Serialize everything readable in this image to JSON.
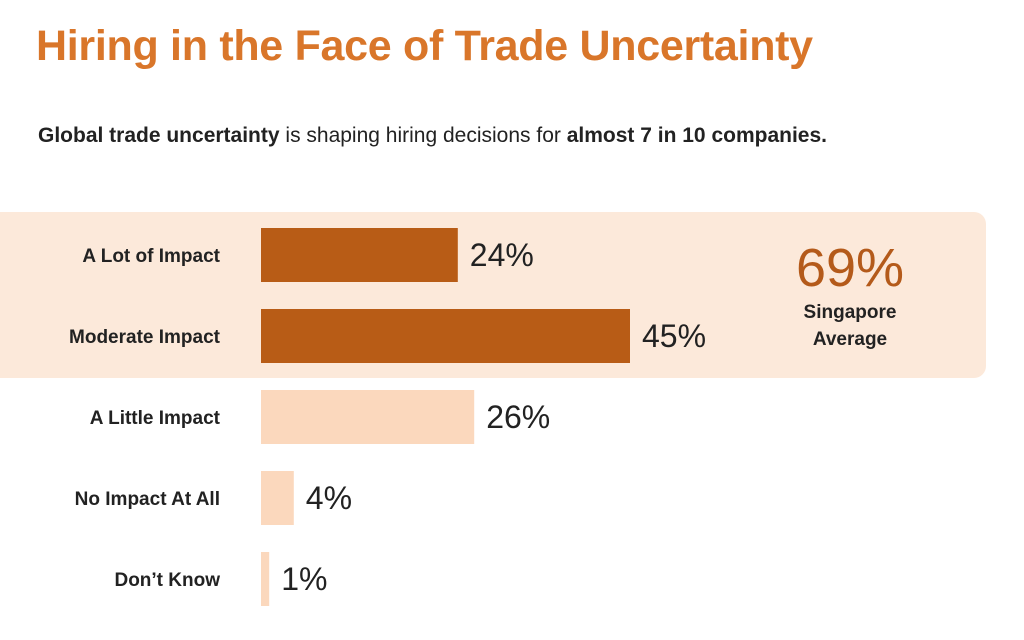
{
  "header": {
    "title": "Hiring in the Face of Trade Uncertainty",
    "subtitle_bold_1": "Global trade uncertainty",
    "subtitle_plain": " is shaping hiring decisions for ",
    "subtitle_bold_2": "almost 7 in 10 companies."
  },
  "callout": {
    "value": "69%",
    "label_line1": "Singapore",
    "label_line2": "Average"
  },
  "colors": {
    "title": "#d9762a",
    "bar_highlight": "#b85c16",
    "bar_light": "#fbd8bd",
    "panel_background": "#fce9da",
    "callout_value": "#b45a1a"
  },
  "chart_data": {
    "type": "bar",
    "orientation": "horizontal",
    "categories": [
      "A Lot of Impact",
      "Moderate Impact",
      "A Little Impact",
      "No Impact At All",
      "Don’t Know"
    ],
    "values": [
      24,
      45,
      26,
      4,
      1
    ],
    "value_labels": [
      "24%",
      "45%",
      "26%",
      "4%",
      "1%"
    ],
    "highlighted": [
      true,
      true,
      false,
      false,
      false
    ],
    "unit": "%",
    "grid": false,
    "legend": "none"
  }
}
